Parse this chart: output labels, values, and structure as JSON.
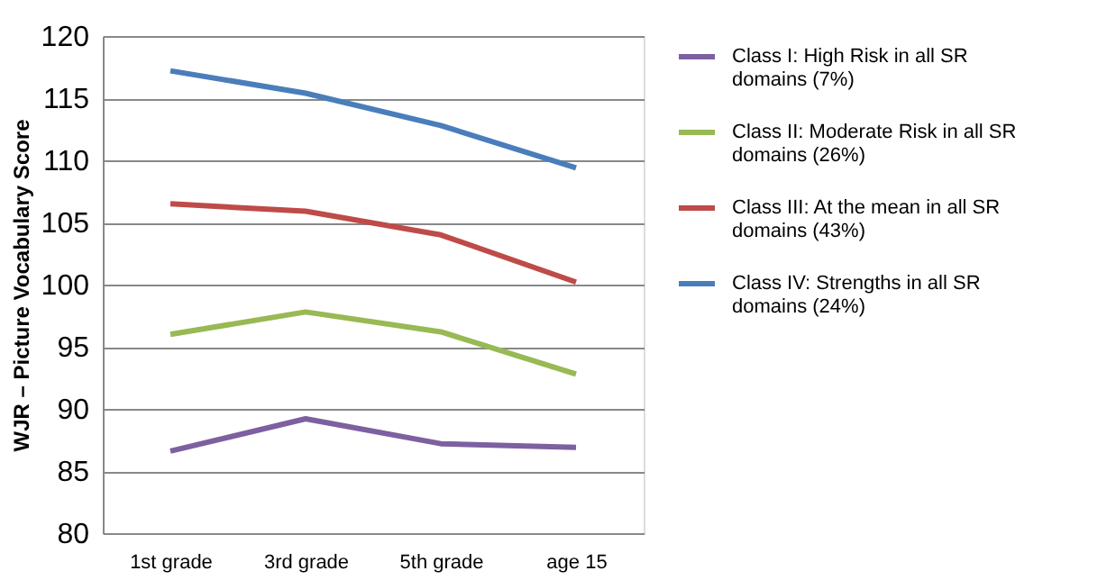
{
  "chart_data": {
    "type": "line",
    "ylabel": "WJR – Picture Vocabulary Score",
    "categories": [
      "1st grade",
      "3rd grade",
      "5th grade",
      "age 15"
    ],
    "series": [
      {
        "name": "Class I:  High Risk in all SR domains (7%)",
        "color": "#7d60a0",
        "values": [
          86.6,
          89.2,
          87.2,
          86.9
        ]
      },
      {
        "name": "Class II:  Moderate Risk in all SR domains (26%)",
        "color": "#98b954",
        "values": [
          96.0,
          97.8,
          96.2,
          92.8
        ]
      },
      {
        "name": "Class III:  At the mean in all SR domains (43%)",
        "color": "#be4b48",
        "values": [
          106.5,
          105.9,
          104.0,
          100.2
        ]
      },
      {
        "name": "Class IV:  Strengths in all SR domains (24%)",
        "color": "#4a7ebb",
        "values": [
          117.2,
          115.4,
          112.8,
          109.4
        ]
      }
    ],
    "ylim": [
      80,
      120
    ],
    "yticks": [
      80,
      85,
      90,
      95,
      100,
      105,
      110,
      115,
      120
    ],
    "grid": "y",
    "legend": "right",
    "marker": "none",
    "line_style": "solid"
  }
}
